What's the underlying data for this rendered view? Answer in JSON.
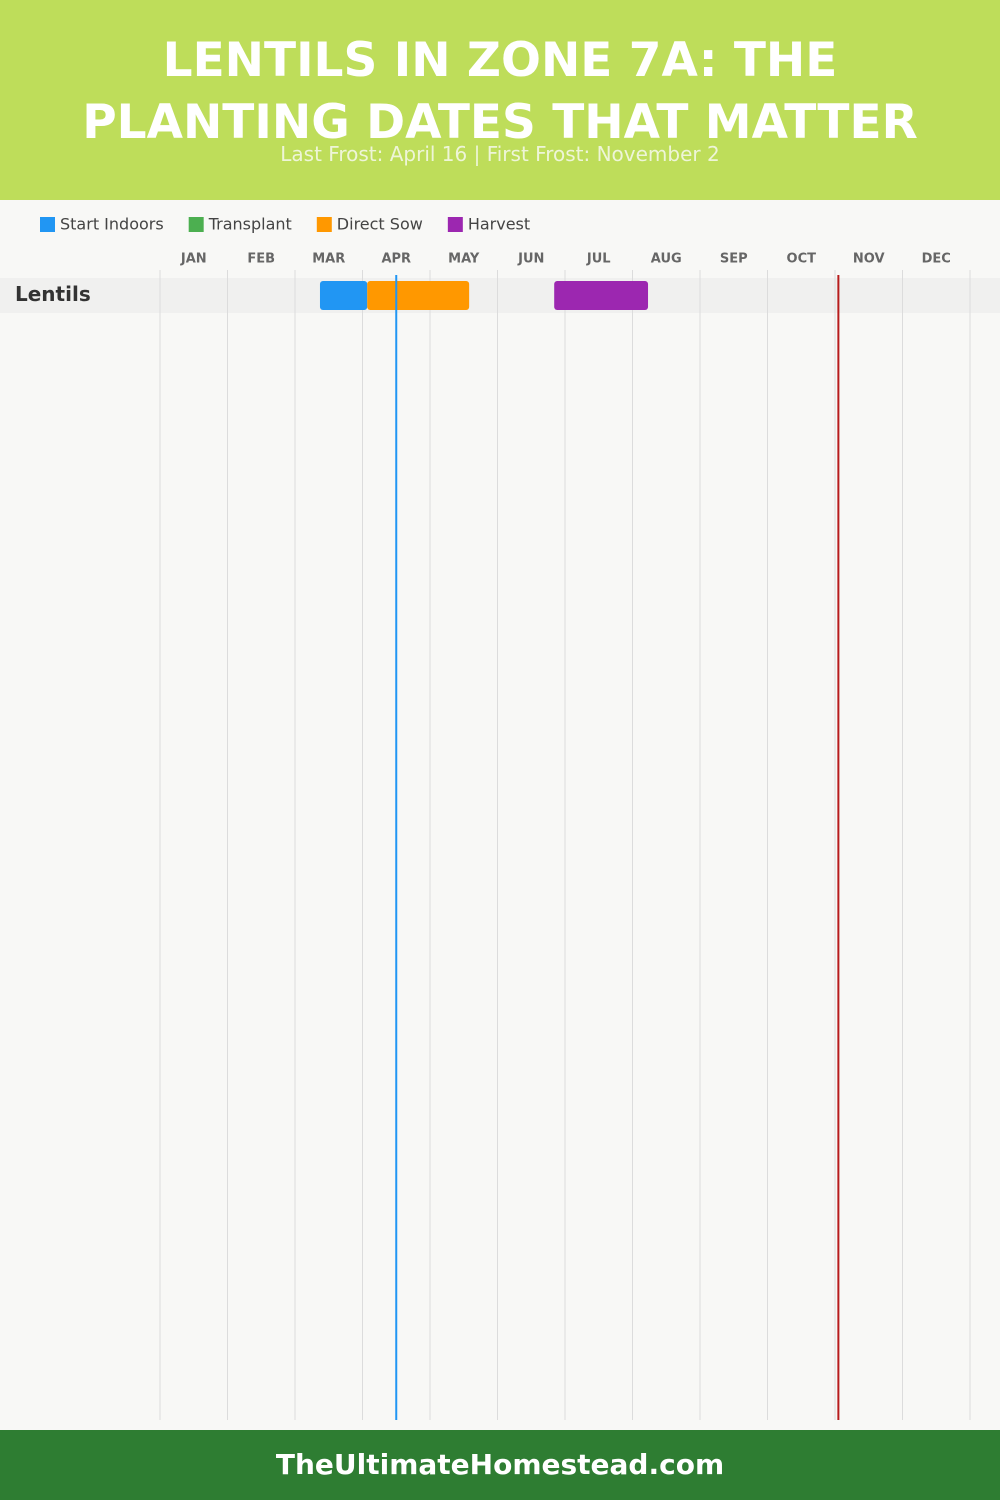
{
  "chart_data": {
    "type": "gantt",
    "title": "LENTILS IN ZONE 7A: THE PLANTING DATES THAT MATTER",
    "subtitle": "Last Frost: April 16 | First Frost: November 2",
    "footer": "TheUltimateHomestead.com",
    "categories": [
      "Lentils"
    ],
    "series": [
      {
        "name": "Start Indoors",
        "color": "#2196f3",
        "values": [
          [
            2.37,
            3.07
          ]
        ]
      },
      {
        "name": "Transplant",
        "color": "#4caf50",
        "values": [
          null
        ]
      },
      {
        "name": "Direct Sow",
        "color": "#ff9800",
        "values": [
          [
            3.07,
            4.58
          ]
        ]
      },
      {
        "name": "Harvest",
        "color": "#9c27b0",
        "values": [
          [
            5.84,
            7.23
          ]
        ]
      }
    ],
    "reference_lines": [
      {
        "value": 3.5,
        "color": "#2196f3"
      },
      {
        "value": 10.05,
        "color": "#b71c1c"
      }
    ],
    "xlim": [
      0,
      12
    ],
    "xticks": [
      {
        "value": 0,
        "label": "JAN"
      },
      {
        "value": 1,
        "label": "FEB"
      },
      {
        "value": 2,
        "label": "MAR"
      },
      {
        "value": 3,
        "label": "APR"
      },
      {
        "value": 4,
        "label": "MAY"
      },
      {
        "value": 5,
        "label": "JUN"
      },
      {
        "value": 6,
        "label": "JUL"
      },
      {
        "value": 7,
        "label": "AUG"
      },
      {
        "value": 8,
        "label": "SEP"
      },
      {
        "value": 9,
        "label": "OCT"
      },
      {
        "value": 10,
        "label": "NOV"
      },
      {
        "value": 11,
        "label": "DEC"
      }
    ],
    "grid": true
  }
}
